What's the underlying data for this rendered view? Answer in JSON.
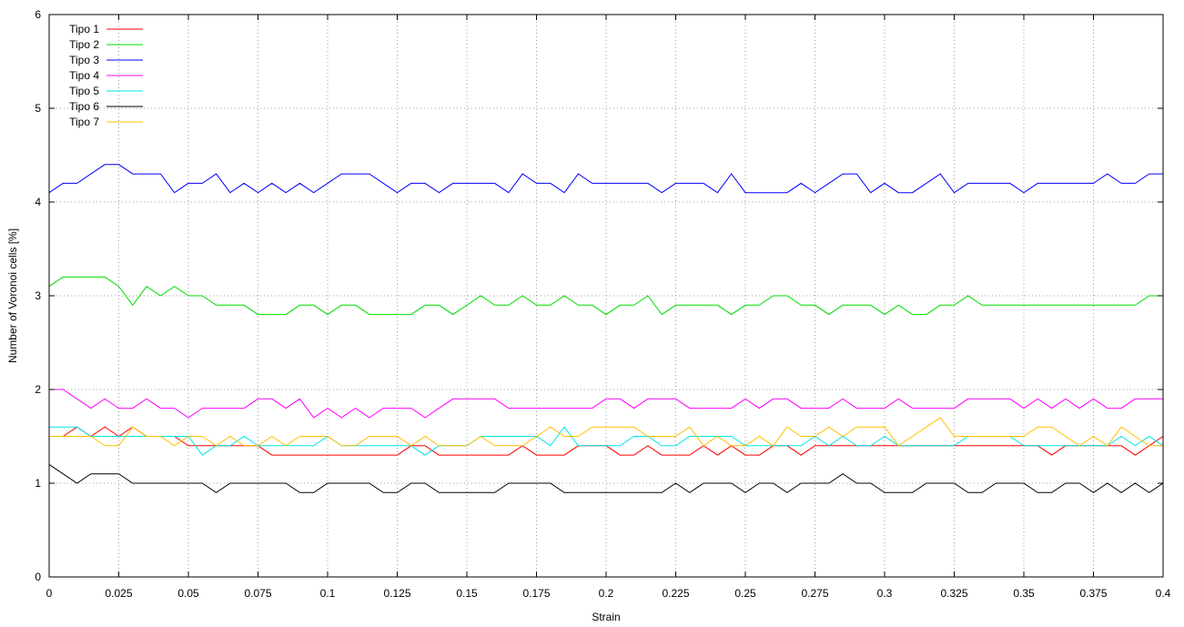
{
  "chart_data": {
    "type": "line",
    "xlabel": "Strain",
    "ylabel": "Number of Voronoi cells [%]",
    "xlim": [
      0,
      0.4
    ],
    "ylim": [
      0,
      6
    ],
    "grid": true,
    "legend_position": "top-left",
    "x_ticks": [
      {
        "value": 0,
        "label": "0"
      },
      {
        "value": 0.025,
        "label": "0.025"
      },
      {
        "value": 0.05,
        "label": "0.05"
      },
      {
        "value": 0.075,
        "label": "0.075"
      },
      {
        "value": 0.1,
        "label": "0.1"
      },
      {
        "value": 0.125,
        "label": "0.125"
      },
      {
        "value": 0.15,
        "label": "0.15"
      },
      {
        "value": 0.175,
        "label": "0.175"
      },
      {
        "value": 0.2,
        "label": "0.2"
      },
      {
        "value": 0.225,
        "label": "0.225"
      },
      {
        "value": 0.25,
        "label": "0.25"
      },
      {
        "value": 0.275,
        "label": "0.275"
      },
      {
        "value": 0.3,
        "label": "0.3"
      },
      {
        "value": 0.325,
        "label": "0.325"
      },
      {
        "value": 0.35,
        "label": "0.35"
      },
      {
        "value": 0.375,
        "label": "0.375"
      },
      {
        "value": 0.4,
        "label": "0.4"
      }
    ],
    "y_ticks": [
      {
        "value": 0,
        "label": "0"
      },
      {
        "value": 1,
        "label": "1"
      },
      {
        "value": 2,
        "label": "2"
      },
      {
        "value": 3,
        "label": "3"
      },
      {
        "value": 4,
        "label": "4"
      },
      {
        "value": 5,
        "label": "5"
      },
      {
        "value": 6,
        "label": "6"
      }
    ],
    "x": [
      0,
      0.005,
      0.01,
      0.015,
      0.02,
      0.025,
      0.03,
      0.035,
      0.04,
      0.045,
      0.05,
      0.055,
      0.06,
      0.065,
      0.07,
      0.075,
      0.08,
      0.085,
      0.09,
      0.095,
      0.1,
      0.105,
      0.11,
      0.115,
      0.12,
      0.125,
      0.13,
      0.135,
      0.14,
      0.145,
      0.15,
      0.155,
      0.16,
      0.165,
      0.17,
      0.175,
      0.18,
      0.185,
      0.19,
      0.195,
      0.2,
      0.205,
      0.21,
      0.215,
      0.22,
      0.225,
      0.23,
      0.235,
      0.24,
      0.245,
      0.25,
      0.255,
      0.26,
      0.265,
      0.27,
      0.275,
      0.28,
      0.285,
      0.29,
      0.295,
      0.3,
      0.305,
      0.31,
      0.315,
      0.32,
      0.325,
      0.33,
      0.335,
      0.34,
      0.345,
      0.35,
      0.355,
      0.36,
      0.365,
      0.37,
      0.375,
      0.38,
      0.385,
      0.39,
      0.395,
      0.4
    ],
    "series": [
      {
        "name": "Tipo 1",
        "color": "#ff0000",
        "values": [
          1.5,
          1.5,
          1.6,
          1.5,
          1.6,
          1.5,
          1.6,
          1.5,
          1.5,
          1.5,
          1.4,
          1.4,
          1.4,
          1.4,
          1.4,
          1.4,
          1.3,
          1.3,
          1.3,
          1.3,
          1.3,
          1.3,
          1.3,
          1.3,
          1.3,
          1.3,
          1.4,
          1.4,
          1.3,
          1.3,
          1.3,
          1.3,
          1.3,
          1.3,
          1.4,
          1.3,
          1.3,
          1.3,
          1.4,
          1.4,
          1.4,
          1.3,
          1.3,
          1.4,
          1.3,
          1.3,
          1.3,
          1.4,
          1.3,
          1.4,
          1.3,
          1.3,
          1.4,
          1.4,
          1.3,
          1.4,
          1.4,
          1.4,
          1.4,
          1.4,
          1.4,
          1.4,
          1.4,
          1.4,
          1.4,
          1.4,
          1.4,
          1.4,
          1.4,
          1.4,
          1.4,
          1.4,
          1.3,
          1.4,
          1.4,
          1.4,
          1.4,
          1.4,
          1.3,
          1.4,
          1.5
        ]
      },
      {
        "name": "Tipo 2",
        "color": "#00dd00",
        "values": [
          3.1,
          3.2,
          3.2,
          3.2,
          3.2,
          3.1,
          2.9,
          3.1,
          3.0,
          3.1,
          3.0,
          3.0,
          2.9,
          2.9,
          2.9,
          2.8,
          2.8,
          2.8,
          2.9,
          2.9,
          2.8,
          2.9,
          2.9,
          2.8,
          2.8,
          2.8,
          2.8,
          2.9,
          2.9,
          2.8,
          2.9,
          3.0,
          2.9,
          2.9,
          3.0,
          2.9,
          2.9,
          3.0,
          2.9,
          2.9,
          2.8,
          2.9,
          2.9,
          3.0,
          2.8,
          2.9,
          2.9,
          2.9,
          2.9,
          2.8,
          2.9,
          2.9,
          3.0,
          3.0,
          2.9,
          2.9,
          2.8,
          2.9,
          2.9,
          2.9,
          2.8,
          2.9,
          2.8,
          2.8,
          2.9,
          2.9,
          3.0,
          2.9,
          2.9,
          2.9,
          2.9,
          2.9,
          2.9,
          2.9,
          2.9,
          2.9,
          2.9,
          2.9,
          2.9,
          3.0,
          3.0
        ]
      },
      {
        "name": "Tipo 3",
        "color": "#0000ff",
        "values": [
          4.1,
          4.2,
          4.2,
          4.3,
          4.4,
          4.4,
          4.3,
          4.3,
          4.3,
          4.1,
          4.2,
          4.2,
          4.3,
          4.1,
          4.2,
          4.1,
          4.2,
          4.1,
          4.2,
          4.1,
          4.2,
          4.3,
          4.3,
          4.3,
          4.2,
          4.1,
          4.2,
          4.2,
          4.1,
          4.2,
          4.2,
          4.2,
          4.2,
          4.1,
          4.3,
          4.2,
          4.2,
          4.1,
          4.3,
          4.2,
          4.2,
          4.2,
          4.2,
          4.2,
          4.1,
          4.2,
          4.2,
          4.2,
          4.1,
          4.3,
          4.1,
          4.1,
          4.1,
          4.1,
          4.2,
          4.1,
          4.2,
          4.3,
          4.3,
          4.1,
          4.2,
          4.1,
          4.1,
          4.2,
          4.3,
          4.1,
          4.2,
          4.2,
          4.2,
          4.2,
          4.1,
          4.2,
          4.2,
          4.2,
          4.2,
          4.2,
          4.3,
          4.2,
          4.2,
          4.3,
          4.3
        ]
      },
      {
        "name": "Tipo 4",
        "color": "#ff00ff",
        "values": [
          2.0,
          2.0,
          1.9,
          1.8,
          1.9,
          1.8,
          1.8,
          1.9,
          1.8,
          1.8,
          1.7,
          1.8,
          1.8,
          1.8,
          1.8,
          1.9,
          1.9,
          1.8,
          1.9,
          1.7,
          1.8,
          1.7,
          1.8,
          1.7,
          1.8,
          1.8,
          1.8,
          1.7,
          1.8,
          1.9,
          1.9,
          1.9,
          1.9,
          1.8,
          1.8,
          1.8,
          1.8,
          1.8,
          1.8,
          1.8,
          1.9,
          1.9,
          1.8,
          1.9,
          1.9,
          1.9,
          1.8,
          1.8,
          1.8,
          1.8,
          1.9,
          1.8,
          1.9,
          1.9,
          1.8,
          1.8,
          1.8,
          1.9,
          1.8,
          1.8,
          1.8,
          1.9,
          1.8,
          1.8,
          1.8,
          1.8,
          1.9,
          1.9,
          1.9,
          1.9,
          1.8,
          1.9,
          1.8,
          1.9,
          1.8,
          1.9,
          1.8,
          1.8,
          1.9,
          1.9,
          1.9
        ]
      },
      {
        "name": "Tipo 5",
        "color": "#00e5e5",
        "values": [
          1.6,
          1.6,
          1.6,
          1.5,
          1.5,
          1.5,
          1.5,
          1.5,
          1.5,
          1.5,
          1.5,
          1.3,
          1.4,
          1.4,
          1.5,
          1.4,
          1.4,
          1.4,
          1.4,
          1.4,
          1.5,
          1.4,
          1.4,
          1.4,
          1.4,
          1.4,
          1.4,
          1.3,
          1.4,
          1.4,
          1.4,
          1.5,
          1.5,
          1.5,
          1.5,
          1.5,
          1.4,
          1.6,
          1.4,
          1.4,
          1.4,
          1.4,
          1.5,
          1.5,
          1.4,
          1.4,
          1.5,
          1.5,
          1.5,
          1.5,
          1.4,
          1.4,
          1.4,
          1.4,
          1.4,
          1.5,
          1.4,
          1.5,
          1.4,
          1.4,
          1.5,
          1.4,
          1.4,
          1.4,
          1.4,
          1.4,
          1.5,
          1.5,
          1.5,
          1.5,
          1.4,
          1.4,
          1.4,
          1.4,
          1.4,
          1.4,
          1.4,
          1.5,
          1.4,
          1.5,
          1.4
        ]
      },
      {
        "name": "Tipo 6",
        "color": "#000000",
        "values": [
          1.2,
          1.1,
          1.0,
          1.1,
          1.1,
          1.1,
          1.0,
          1.0,
          1.0,
          1.0,
          1.0,
          1.0,
          0.9,
          1.0,
          1.0,
          1.0,
          1.0,
          1.0,
          0.9,
          0.9,
          1.0,
          1.0,
          1.0,
          1.0,
          0.9,
          0.9,
          1.0,
          1.0,
          0.9,
          0.9,
          0.9,
          0.9,
          0.9,
          1.0,
          1.0,
          1.0,
          1.0,
          0.9,
          0.9,
          0.9,
          0.9,
          0.9,
          0.9,
          0.9,
          0.9,
          1.0,
          0.9,
          1.0,
          1.0,
          1.0,
          0.9,
          1.0,
          1.0,
          0.9,
          1.0,
          1.0,
          1.0,
          1.1,
          1.0,
          1.0,
          0.9,
          0.9,
          0.9,
          1.0,
          1.0,
          1.0,
          0.9,
          0.9,
          1.0,
          1.0,
          1.0,
          0.9,
          0.9,
          1.0,
          1.0,
          0.9,
          1.0,
          0.9,
          1.0,
          0.9,
          1.0
        ]
      },
      {
        "name": "Tipo 7",
        "color": "#ffc000",
        "values": [
          1.5,
          1.5,
          1.5,
          1.5,
          1.4,
          1.4,
          1.6,
          1.5,
          1.5,
          1.4,
          1.5,
          1.5,
          1.4,
          1.5,
          1.4,
          1.4,
          1.5,
          1.4,
          1.5,
          1.5,
          1.5,
          1.4,
          1.4,
          1.5,
          1.5,
          1.5,
          1.4,
          1.5,
          1.4,
          1.4,
          1.4,
          1.5,
          1.4,
          1.4,
          1.4,
          1.5,
          1.6,
          1.5,
          1.5,
          1.6,
          1.6,
          1.6,
          1.6,
          1.5,
          1.5,
          1.5,
          1.6,
          1.4,
          1.5,
          1.4,
          1.4,
          1.5,
          1.4,
          1.6,
          1.5,
          1.5,
          1.6,
          1.5,
          1.6,
          1.6,
          1.6,
          1.4,
          1.5,
          1.6,
          1.7,
          1.5,
          1.5,
          1.5,
          1.5,
          1.5,
          1.5,
          1.6,
          1.6,
          1.5,
          1.4,
          1.5,
          1.4,
          1.6,
          1.5,
          1.4,
          1.4
        ]
      }
    ]
  }
}
